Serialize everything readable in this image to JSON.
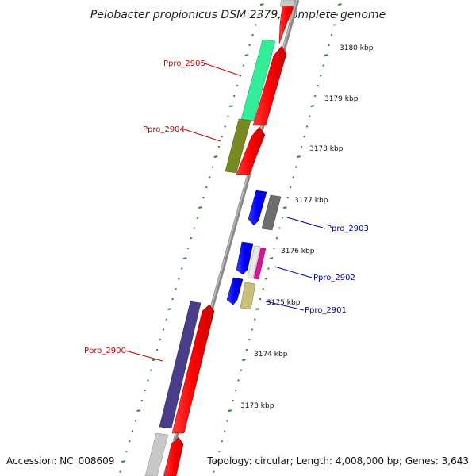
{
  "title": "Pelobacter propionicus DSM 2379, complete genome",
  "scale": {
    "unit": "kbp",
    "ticks": [
      {
        "label": "3180 kbp"
      },
      {
        "label": "3179 kbp"
      },
      {
        "label": "3178 kbp"
      },
      {
        "label": "3177 kbp"
      },
      {
        "label": "3176 kbp"
      },
      {
        "label": "3175 kbp"
      },
      {
        "label": "3174 kbp"
      },
      {
        "label": "3173 kbp"
      }
    ]
  },
  "genes": [
    {
      "name": "Ppro_2905",
      "color": "#cc0000"
    },
    {
      "name": "Ppro_2904",
      "color": "#cc0000"
    },
    {
      "name": "Ppro_2903",
      "color": "#0000aa"
    },
    {
      "name": "Ppro_2902",
      "color": "#0000aa"
    },
    {
      "name": "Ppro_2901",
      "color": "#0000aa"
    },
    {
      "name": "Ppro_2900",
      "color": "#cc0000"
    }
  ],
  "footer": {
    "accession": "Accession: NC_008609",
    "topology": "Topology: circular; Length: 4,008,000 bp; Genes: 3,643"
  },
  "colors": {
    "backbone": "#8a8a8a",
    "forward_strand": "#ff0000",
    "reverse_strand": "#0000ff",
    "scale_dots": "#2a8a2a"
  }
}
